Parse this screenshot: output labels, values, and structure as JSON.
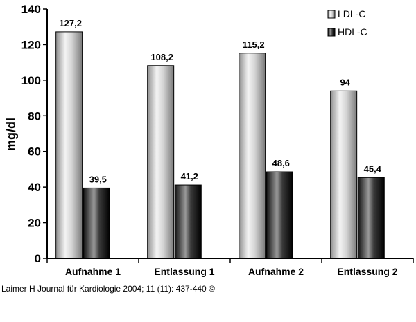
{
  "chart_data": {
    "type": "bar",
    "title": "",
    "xlabel": "",
    "ylabel": "mg/dl",
    "ylim": [
      0,
      140
    ],
    "yticks": [
      0,
      20,
      40,
      60,
      80,
      100,
      120,
      140
    ],
    "grid": false,
    "legend_position": "top-right",
    "categories": [
      "Aufnahme 1",
      "Entlassung 1",
      "Aufnahme 2",
      "Entlassung 2"
    ],
    "series": [
      {
        "name": "LDL-C",
        "values": [
          127.2,
          108.2,
          115.2,
          94
        ],
        "labels": [
          "127,2",
          "108,2",
          "115,2",
          "94"
        ],
        "color": "#c8c8c8"
      },
      {
        "name": "HDL-C",
        "values": [
          39.5,
          41.2,
          48.6,
          45.4
        ],
        "labels": [
          "39,5",
          "41,2",
          "48,6",
          "45,4"
        ],
        "color": "#2a2a2a"
      }
    ]
  },
  "credit": "Laimer H Journal für Kardiologie 2004; 11 (11): 437-440 ©"
}
